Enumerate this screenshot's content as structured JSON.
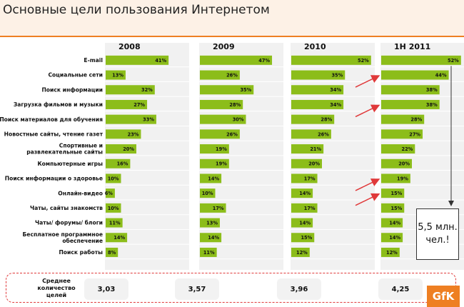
{
  "title": "Основные цели пользования Интернетом",
  "chart_data": {
    "type": "bar",
    "orientation": "horizontal",
    "categories": [
      "E-mail",
      "Социальные сети",
      "Поиск информации",
      "Загрузка фильмов и музыки",
      "Поиск материалов для обучения",
      "Новостные сайты, чтение газет",
      "Спортивные и развлекательные сайты",
      "Компьютерные игры",
      "Поиск информации о здоровье",
      "Онлайн-видео",
      "Чаты, сайты знакомств",
      "Чаты/ форумы/ блоги",
      "Бесплатное программное обеспечение",
      "Поиск работы"
    ],
    "series": [
      {
        "name": "2008",
        "values": [
          41,
          13,
          32,
          27,
          33,
          23,
          20,
          16,
          10,
          6,
          10,
          11,
          14,
          8
        ]
      },
      {
        "name": "2009",
        "values": [
          47,
          26,
          35,
          28,
          30,
          26,
          19,
          19,
          14,
          10,
          17,
          13,
          14,
          11
        ]
      },
      {
        "name": "2010",
        "values": [
          52,
          35,
          34,
          34,
          28,
          26,
          21,
          20,
          17,
          14,
          17,
          14,
          15,
          12
        ]
      },
      {
        "name": "1H 2011",
        "values": [
          52,
          44,
          38,
          38,
          28,
          27,
          22,
          20,
          19,
          15,
          15,
          14,
          14,
          12
        ]
      }
    ],
    "value_suffix": "%",
    "bar_color": "#8cbd1a",
    "highlighted": [
      {
        "series": "1H 2011",
        "category": "Социальные сети"
      },
      {
        "series": "1H 2011",
        "category": "Загрузка фильмов и музыки"
      },
      {
        "series": "1H 2011",
        "category": "Поиск информации о здоровье"
      },
      {
        "series": "1H 2011",
        "category": "Онлайн-видео"
      }
    ]
  },
  "average": {
    "label": "Среднее количество целей",
    "values": [
      "3,03",
      "3,57",
      "3,96",
      "4,25"
    ]
  },
  "note": "5,5 млн. чел.!",
  "logo": "GfK",
  "colors": {
    "accent": "#ee7f22",
    "bar": "#8cbd1a",
    "arrow": "#e0393a",
    "title_bg": "#fdf1e6"
  }
}
